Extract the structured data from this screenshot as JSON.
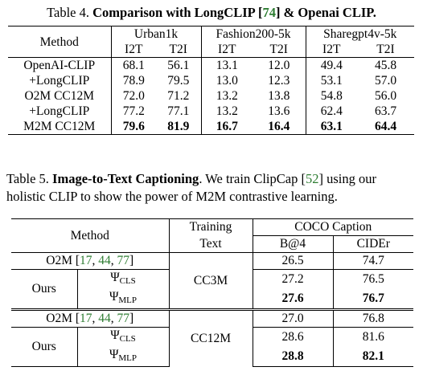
{
  "table4": {
    "caption_label": "Table 4.",
    "caption_bold_pre": "Comparison with LongCLIP [",
    "caption_ref": "74",
    "caption_bold_post": "] & Openai CLIP.",
    "method_header": "Method",
    "groups": [
      "Urban1k",
      "Fashion200-5k",
      "Sharegpt4v-5k"
    ],
    "subheaders": [
      "I2T",
      "T2I",
      "I2T",
      "T2I",
      "I2T",
      "T2I"
    ],
    "rows": [
      {
        "method": "OpenAI-CLIP",
        "values": [
          "68.1",
          "56.1",
          "13.1",
          "12.0",
          "49.4",
          "45.8"
        ]
      },
      {
        "method": "+LongCLIP",
        "values": [
          "78.9",
          "79.5",
          "13.0",
          "12.3",
          "53.1",
          "57.0"
        ]
      },
      {
        "method": "O2M CC12M",
        "values": [
          "72.0",
          "71.2",
          "13.2",
          "13.8",
          "54.8",
          "56.0"
        ]
      },
      {
        "method": "+LongCLIP",
        "values": [
          "77.2",
          "77.1",
          "13.2",
          "13.6",
          "62.4",
          "63.7"
        ]
      },
      {
        "method": "M2M CC12M",
        "values": [
          "79.6",
          "81.9",
          "16.7",
          "16.4",
          "63.1",
          "64.4"
        ]
      }
    ]
  },
  "table5": {
    "caption_label": "Table 5.",
    "caption_bold": "Image-to-Text Captioning",
    "caption_pre": ". We train ClipCap [",
    "caption_ref": "52",
    "caption_post": "] using our holistic CLIP to show the power of M2M contrastive learning.",
    "method_header": "Method",
    "training_header_1": "Training",
    "training_header_2": "Text",
    "coco_header": "COCO Caption",
    "metric_1": "B@4",
    "metric_2": "CIDEr",
    "o2m_label": "O2M [",
    "refs": [
      "17",
      "44",
      "77"
    ],
    "comma": ", ",
    "close_bracket": "]",
    "ours_label": "Ours",
    "psi": "Ψ",
    "cls_sub": "CLS",
    "mlp_sub": "MLP",
    "blocks": [
      {
        "training_text": "CC3M",
        "o2m": [
          "26.5",
          "74.7"
        ],
        "cls": [
          "27.2",
          "76.5"
        ],
        "mlp": [
          "27.6",
          "76.7"
        ]
      },
      {
        "training_text": "CC12M",
        "o2m": [
          "27.0",
          "76.8"
        ],
        "cls": [
          "28.6",
          "81.6"
        ],
        "mlp": [
          "28.8",
          "82.1"
        ]
      }
    ]
  }
}
